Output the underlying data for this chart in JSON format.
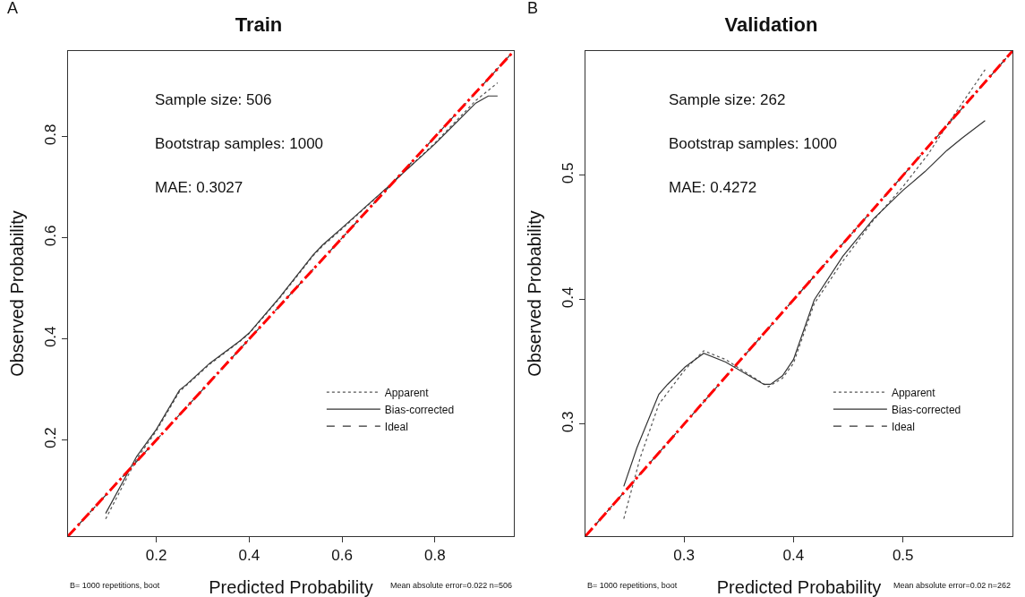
{
  "chart_data": [
    {
      "type": "line",
      "title": "Train",
      "xlabel": "Predicted Probability",
      "ylabel": "Observed Probability",
      "xlim": [
        0.01,
        0.97
      ],
      "ylim": [
        0.01,
        0.97
      ],
      "xticks": [
        0.2,
        0.4,
        0.6,
        0.8
      ],
      "yticks": [
        0.2,
        0.4,
        0.6,
        0.8
      ],
      "grid": false,
      "legend": "bottom right",
      "marker": "none",
      "annotations": [
        "A",
        "Sample size: 506",
        "Bootstrap samples: 1000",
        "MAE: 0.3027",
        "B= 1000 repetitions, boot",
        "Mean absolute error=0.022 n=506"
      ],
      "series": [
        {
          "name": "Apparent",
          "color": "#555555",
          "line_style": "dotted",
          "x": [
            0.091,
            0.158,
            0.2,
            0.25,
            0.315,
            0.381,
            0.4,
            0.465,
            0.538,
            0.558,
            0.6,
            0.712,
            0.8,
            0.888,
            0.935
          ],
          "values": [
            0.044,
            0.163,
            0.218,
            0.296,
            0.35,
            0.396,
            0.411,
            0.48,
            0.565,
            0.584,
            0.618,
            0.712,
            0.788,
            0.872,
            0.907
          ]
        },
        {
          "name": "Bias-corrected",
          "color": "#333333",
          "line_style": "solid",
          "x": [
            0.091,
            0.158,
            0.2,
            0.25,
            0.265,
            0.315,
            0.381,
            0.4,
            0.465,
            0.538,
            0.558,
            0.6,
            0.712,
            0.8,
            0.888,
            0.915,
            0.935
          ],
          "values": [
            0.055,
            0.168,
            0.221,
            0.299,
            0.31,
            0.352,
            0.397,
            0.412,
            0.482,
            0.567,
            0.586,
            0.62,
            0.712,
            0.786,
            0.867,
            0.881,
            0.881
          ]
        },
        {
          "name": "Ideal",
          "color": "#333333",
          "line_style": "dashed",
          "x": [
            0.01,
            0.97
          ],
          "values": [
            0.01,
            0.97
          ]
        },
        {
          "color": "#ff0000",
          "line_style": "dashed",
          "x": [
            0.01,
            0.97
          ],
          "values": [
            0.01,
            0.97
          ]
        }
      ]
    },
    {
      "type": "line",
      "title": "Validation",
      "xlabel": "Predicted Probability",
      "ylabel": "Observed Probability",
      "xlim": [
        0.21,
        0.6
      ],
      "ylim": [
        0.21,
        0.6
      ],
      "xticks": [
        0.3,
        0.4,
        0.5
      ],
      "yticks": [
        0.3,
        0.4,
        0.5
      ],
      "grid": false,
      "legend": "bottom right",
      "marker": "none",
      "annotations": [
        "B",
        "Sample size: 262",
        "Bootstrap samples: 1000",
        "MAE: 0.4272",
        "B= 1000 repetitions, boot",
        "Mean absolute error=0.02 n=262"
      ],
      "series": [
        {
          "name": "Apparent",
          "color": "#555555",
          "line_style": "dotted",
          "x": [
            0.245,
            0.26,
            0.277,
            0.301,
            0.318,
            0.338,
            0.377,
            0.39,
            0.4,
            0.419,
            0.445,
            0.473,
            0.5,
            0.523,
            0.54,
            0.575
          ],
          "values": [
            0.224,
            0.273,
            0.316,
            0.344,
            0.359,
            0.352,
            0.33,
            0.337,
            0.349,
            0.397,
            0.431,
            0.464,
            0.491,
            0.517,
            0.54,
            0.585
          ]
        },
        {
          "name": "Bias-corrected",
          "color": "#333333",
          "line_style": "solid",
          "x": [
            0.245,
            0.257,
            0.277,
            0.285,
            0.301,
            0.318,
            0.338,
            0.373,
            0.379,
            0.39,
            0.4,
            0.419,
            0.445,
            0.473,
            0.5,
            0.52,
            0.54,
            0.554,
            0.575
          ],
          "values": [
            0.25,
            0.281,
            0.324,
            0.332,
            0.346,
            0.357,
            0.35,
            0.332,
            0.332,
            0.339,
            0.352,
            0.4,
            0.435,
            0.465,
            0.488,
            0.503,
            0.52,
            0.53,
            0.544
          ]
        },
        {
          "name": "Ideal",
          "color": "#333333",
          "line_style": "dashed",
          "x": [
            0.21,
            0.6
          ],
          "values": [
            0.21,
            0.6
          ]
        },
        {
          "color": "#ff0000",
          "line_style": "dashed",
          "x": [
            0.21,
            0.6
          ],
          "values": [
            0.21,
            0.6
          ]
        }
      ]
    }
  ]
}
